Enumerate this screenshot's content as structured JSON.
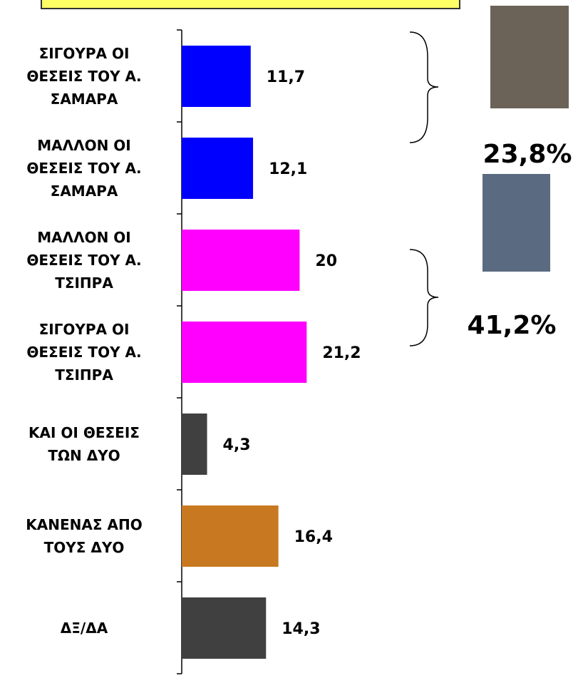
{
  "chart_data": {
    "type": "hbar",
    "categories": [
      "ΣΙΓΟΥΡΑ ΟΙ\nΘΕΣΕΙΣ ΤΟΥ Α.\nΣΑΜΑΡΑ",
      "ΜΑΛΛΟΝ ΟΙ\nΘΕΣΕΙΣ ΤΟΥ Α.\nΣΑΜΑΡΑ",
      "ΜΑΛΛΟΝ ΟΙ\nΘΕΣΕΙΣ ΤΟΥ Α.\nΤΣΙΠΡΑ",
      "ΣΙΓΟΥΡΑ ΟΙ\nΘΕΣΕΙΣ ΤΟΥ Α.\nΤΣΙΠΡΑ",
      "ΚΑΙ ΟΙ ΘΕΣΕΙΣ\nΤΩΝ ΔΥΟ",
      "ΚΑΝΕΝΑΣ ΑΠΟ\nΤΟΥΣ ΔΥΟ",
      "ΔΞ/ΔΑ"
    ],
    "values": [
      11.7,
      12.1,
      20,
      21.2,
      4.3,
      16.4,
      14.3
    ],
    "value_labels": [
      "11,7",
      "12,1",
      "20",
      "21,2",
      "4,3",
      "16,4",
      "14,3"
    ],
    "colors": [
      "#0000ff",
      "#0000ff",
      "#ff00ff",
      "#ff00ff",
      "#404040",
      "#c87820",
      "#404040"
    ],
    "annotations": [
      "23,8%",
      "41,2%"
    ]
  }
}
